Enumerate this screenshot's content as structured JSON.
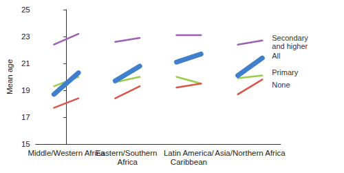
{
  "chart_data": {
    "type": "line",
    "ylabel": "Mean age",
    "categories": [
      "Middle/Western Africa",
      "Eastern/Southern Africa",
      "Latin America/Caribbean",
      "Asia/Northern Africa"
    ],
    "ylim": [
      15,
      25
    ],
    "yticks": [
      15,
      17,
      19,
      21,
      23,
      25
    ],
    "grid": false,
    "series": [
      {
        "name": "Secondary and higher",
        "color": "#9b5fb4",
        "values": [
          [
            22.4,
            23.2
          ],
          [
            22.6,
            22.9
          ],
          [
            23.1,
            23.1
          ],
          [
            22.4,
            22.7
          ]
        ]
      },
      {
        "name": "All",
        "color": "#3f7fcc",
        "values": [
          [
            18.7,
            20.3
          ],
          [
            19.7,
            20.8
          ],
          [
            21.1,
            21.7
          ],
          [
            20.1,
            21.4
          ]
        ]
      },
      {
        "name": "Primary",
        "color": "#9acd4a",
        "values": [
          [
            19.3,
            20.0
          ],
          [
            19.6,
            20.0
          ],
          [
            20.0,
            19.5
          ],
          [
            19.9,
            20.1
          ]
        ]
      },
      {
        "name": "None",
        "color": "#dd5448",
        "values": [
          [
            17.7,
            18.4
          ],
          [
            18.4,
            19.3
          ],
          [
            19.2,
            19.5
          ],
          [
            18.7,
            19.8
          ]
        ]
      }
    ]
  }
}
